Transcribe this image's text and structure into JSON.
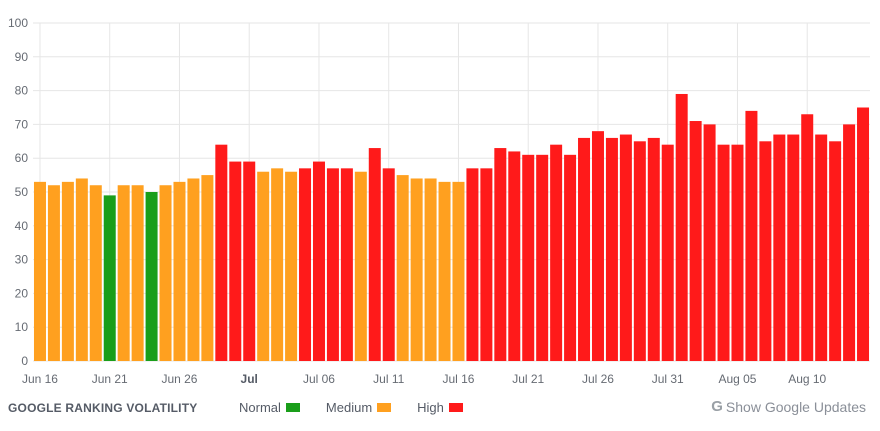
{
  "chart_data": {
    "type": "bar",
    "ylim": [
      0,
      100
    ],
    "yticks": [
      0,
      10,
      20,
      30,
      40,
      50,
      60,
      70,
      80,
      90,
      100
    ],
    "grid": true,
    "xtick_labels": [
      {
        "label": "Jun 16",
        "index": 0,
        "bold": false
      },
      {
        "label": "Jun 21",
        "index": 5,
        "bold": false
      },
      {
        "label": "Jun 26",
        "index": 10,
        "bold": false
      },
      {
        "label": "Jul",
        "index": 15,
        "bold": true
      },
      {
        "label": "Jul 06",
        "index": 20,
        "bold": false
      },
      {
        "label": "Jul 11",
        "index": 25,
        "bold": false
      },
      {
        "label": "Jul 16",
        "index": 30,
        "bold": false
      },
      {
        "label": "Jul 21",
        "index": 35,
        "bold": false
      },
      {
        "label": "Jul 26",
        "index": 40,
        "bold": false
      },
      {
        "label": "Jul 31",
        "index": 45,
        "bold": false
      },
      {
        "label": "Aug 05",
        "index": 50,
        "bold": false
      },
      {
        "label": "Aug 10",
        "index": 55,
        "bold": false
      }
    ],
    "values": [
      53,
      52,
      53,
      54,
      52,
      49,
      52,
      52,
      50,
      52,
      53,
      54,
      55,
      64,
      59,
      59,
      56,
      57,
      56,
      57,
      59,
      57,
      57,
      56,
      63,
      57,
      55,
      54,
      54,
      53,
      53,
      57,
      57,
      63,
      62,
      61,
      61,
      64,
      61,
      66,
      68,
      66,
      67,
      65,
      66,
      64,
      79,
      71,
      70,
      64,
      64,
      74,
      65,
      67,
      67,
      73,
      67,
      65,
      70,
      75
    ],
    "levels": [
      "M",
      "M",
      "M",
      "M",
      "M",
      "N",
      "M",
      "M",
      "N",
      "M",
      "M",
      "M",
      "M",
      "H",
      "H",
      "H",
      "M",
      "M",
      "M",
      "H",
      "H",
      "H",
      "H",
      "M",
      "H",
      "H",
      "M",
      "M",
      "M",
      "M",
      "M",
      "H",
      "H",
      "H",
      "H",
      "H",
      "H",
      "H",
      "H",
      "H",
      "H",
      "H",
      "H",
      "H",
      "H",
      "H",
      "H",
      "H",
      "H",
      "H",
      "H",
      "H",
      "H",
      "H",
      "H",
      "H",
      "H",
      "H",
      "H",
      "H"
    ],
    "level_colors": {
      "N": "#1a9e1a",
      "M": "#ffa01f",
      "H": "#ff1a1a"
    }
  },
  "footer": {
    "title": "GOOGLE RANKING VOLATILITY",
    "legend": [
      {
        "label": "Normal",
        "color": "#1a9e1a"
      },
      {
        "label": "Medium",
        "color": "#ffa01f"
      },
      {
        "label": "High",
        "color": "#ff1a1a"
      }
    ],
    "updates_icon": "G",
    "updates_label": "Show Google Updates"
  }
}
